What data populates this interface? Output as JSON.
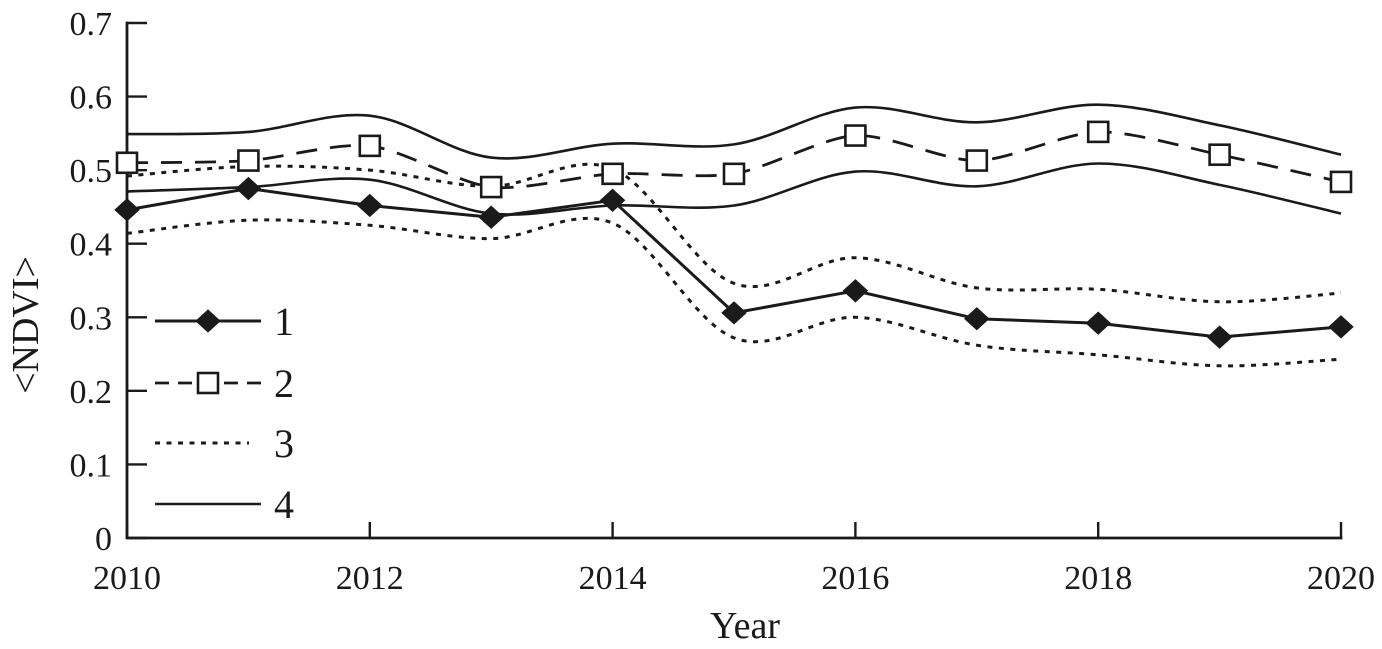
{
  "line_color": "#1a1a1a",
  "background_color": "#ffffff",
  "chart_data": {
    "type": "line",
    "title": "",
    "xlabel": "Year",
    "ylabel": "<NDVI>",
    "xlim": [
      2010,
      2020
    ],
    "ylim": [
      0,
      0.7
    ],
    "xticks": [
      "2010",
      "2012",
      "2014",
      "2016",
      "2018",
      "2020"
    ],
    "yticks": [
      "0",
      "0.1",
      "0.2",
      "0.3",
      "0.4",
      "0.5",
      "0.6",
      "0.7"
    ],
    "grid": false,
    "legend": {
      "position": "lower-left",
      "entries": [
        "1",
        "2",
        "3",
        "4"
      ]
    },
    "x": [
      2010,
      2011,
      2012,
      2013,
      2014,
      2015,
      2016,
      2017,
      2018,
      2019,
      2020
    ],
    "series": [
      {
        "name": "1",
        "line": "solid",
        "marker": "filled-diamond",
        "values": [
          0.446,
          0.475,
          0.452,
          0.436,
          0.459,
          0.306,
          0.336,
          0.298,
          0.292,
          0.273,
          0.287
        ]
      },
      {
        "name": "2",
        "line": "dashed",
        "marker": "open-square",
        "values": [
          0.51,
          0.513,
          0.533,
          0.477,
          0.495,
          0.495,
          0.547,
          0.513,
          0.552,
          0.521,
          0.484
        ]
      },
      {
        "name": "3",
        "line": "dotted",
        "marker": "none",
        "band_around": "1",
        "upper": [
          0.492,
          0.505,
          0.5,
          0.478,
          0.502,
          0.346,
          0.381,
          0.34,
          0.338,
          0.321,
          0.333
        ],
        "lower": [
          0.414,
          0.432,
          0.425,
          0.407,
          0.428,
          0.272,
          0.3,
          0.262,
          0.249,
          0.234,
          0.243
        ]
      },
      {
        "name": "4",
        "line": "solid",
        "marker": "none",
        "band_around": "2",
        "upper": [
          0.549,
          0.552,
          0.574,
          0.517,
          0.536,
          0.535,
          0.585,
          0.565,
          0.589,
          0.561,
          0.521
        ],
        "lower": [
          0.471,
          0.477,
          0.487,
          0.441,
          0.452,
          0.452,
          0.498,
          0.478,
          0.509,
          0.48,
          0.441
        ]
      }
    ]
  }
}
